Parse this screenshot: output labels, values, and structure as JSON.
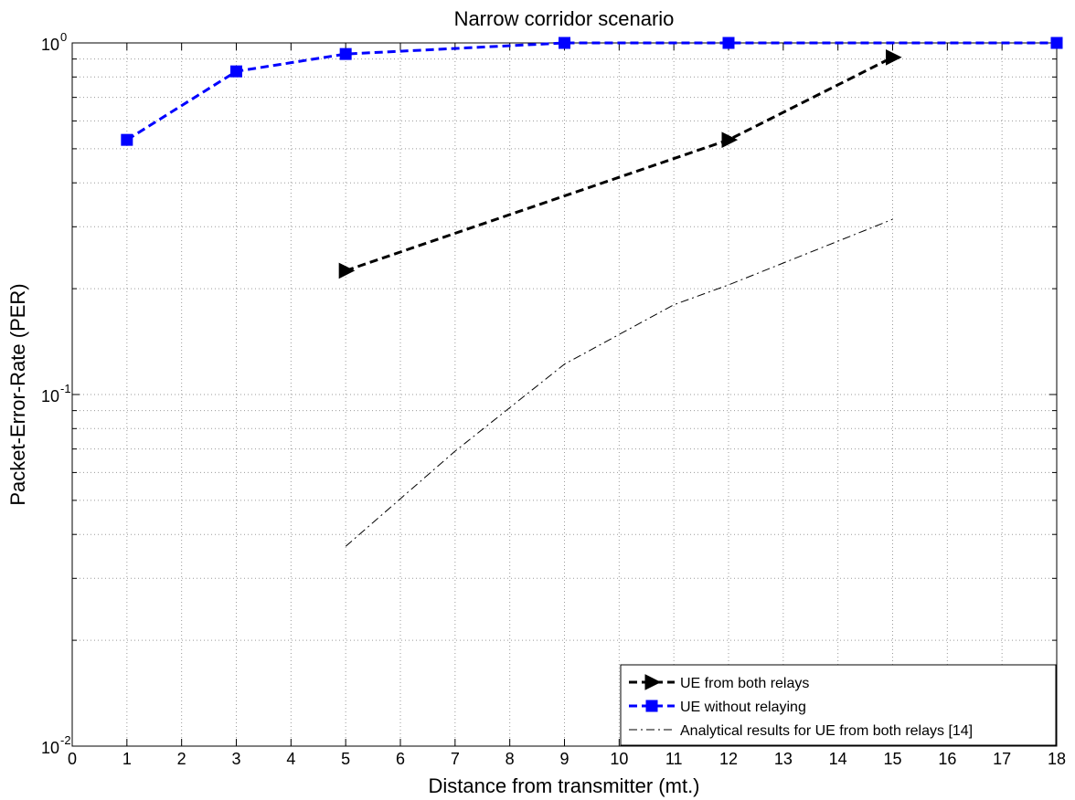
{
  "chart_data": {
    "type": "line",
    "title": "Narrow corridor scenario",
    "xlabel": "Distance from transmitter (mt.)",
    "ylabel": "Packet-Error-Rate (PER)",
    "xlim": [
      0,
      18
    ],
    "ylim": [
      0.01,
      1
    ],
    "yscale": "log",
    "grid": true,
    "legend_position": "bottom-right",
    "x_ticks": [
      "0",
      "1",
      "2",
      "3",
      "4",
      "5",
      "6",
      "7",
      "8",
      "9",
      "10",
      "11",
      "12",
      "13",
      "14",
      "15",
      "16",
      "17",
      "18"
    ],
    "y_ticks": [
      {
        "value": 1,
        "base": "10",
        "exp": "0"
      },
      {
        "value": 0.1,
        "base": "10",
        "exp": "-1"
      },
      {
        "value": 0.01,
        "base": "10",
        "exp": "-2"
      }
    ],
    "series": [
      {
        "name": "UE from both relays",
        "color": "#000000",
        "line": "dashed",
        "marker": "triangle-right",
        "x": [
          5,
          12,
          15
        ],
        "y": [
          0.225,
          0.53,
          0.91
        ]
      },
      {
        "name": "UE  without relaying",
        "color": "#0000ff",
        "line": "dashed",
        "marker": "square",
        "x": [
          1,
          3,
          5,
          9,
          12,
          18
        ],
        "y": [
          0.53,
          0.83,
          0.93,
          1.0,
          1.0,
          1.0
        ]
      },
      {
        "name": "Analytical results for UE from both relays [14]",
        "color": "#000000",
        "line": "dashdot",
        "marker": "none",
        "x": [
          5,
          7,
          9,
          11,
          12,
          15
        ],
        "y": [
          0.037,
          0.069,
          0.122,
          0.18,
          0.205,
          0.315
        ]
      }
    ]
  }
}
